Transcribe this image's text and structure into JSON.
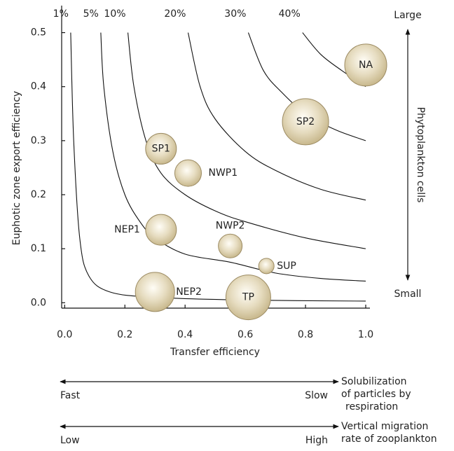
{
  "chart_data": {
    "type": "bubble",
    "x_label": "Transfer efficiency",
    "y_label": "Euphotic zone export efficiency",
    "xlim": [
      -0.01,
      1.0
    ],
    "ylim": [
      -0.01,
      0.55
    ],
    "xticks": [
      {
        "value": 0,
        "label": "0.0"
      },
      0.2,
      0.4,
      0.6,
      0.8,
      {
        "value": 1,
        "label": "1.0"
      }
    ],
    "yticks": [
      {
        "value": 0,
        "label": "0.0"
      },
      0.1,
      0.2,
      0.3,
      0.4,
      0.5
    ],
    "contours": [
      {
        "name": "1%",
        "x": [
          0.02,
          0.03,
          0.05,
          0.08,
          0.15,
          0.3,
          0.6,
          1.0
        ],
        "y": [
          0.5,
          0.3,
          0.12,
          0.05,
          0.02,
          0.01,
          0.005,
          0.003
        ]
      },
      {
        "name": "5%",
        "x": [
          0.12,
          0.13,
          0.16,
          0.2,
          0.25,
          0.3,
          0.4,
          0.55,
          0.7,
          0.85,
          1.0
        ],
        "y": [
          0.5,
          0.4,
          0.28,
          0.2,
          0.15,
          0.12,
          0.09,
          0.075,
          0.055,
          0.045,
          0.04
        ]
      },
      {
        "name": "10%",
        "x": [
          0.21,
          0.23,
          0.27,
          0.32,
          0.4,
          0.5,
          0.6,
          0.8,
          1.0
        ],
        "y": [
          0.5,
          0.4,
          0.3,
          0.24,
          0.2,
          0.17,
          0.15,
          0.12,
          0.1
        ]
      },
      {
        "name": "20%",
        "x": [
          0.41,
          0.45,
          0.5,
          0.6,
          0.7,
          0.85,
          1.0
        ],
        "y": [
          0.5,
          0.4,
          0.34,
          0.28,
          0.245,
          0.21,
          0.19
        ]
      },
      {
        "name": "30%",
        "x": [
          0.61,
          0.66,
          0.72,
          0.8,
          0.9,
          1.0
        ],
        "y": [
          0.5,
          0.43,
          0.39,
          0.35,
          0.32,
          0.3
        ]
      },
      {
        "name": "40%",
        "x": [
          0.79,
          0.85,
          0.92,
          1.0
        ],
        "y": [
          0.5,
          0.46,
          0.43,
          0.4
        ]
      }
    ],
    "points": {
      "names": [
        "NA",
        "SP2",
        "SP1",
        "NWP1",
        "NEP1",
        "NWP2",
        "SUP",
        "NEP2",
        "TP"
      ],
      "x": [
        1.0,
        0.8,
        0.32,
        0.41,
        0.32,
        0.55,
        0.67,
        0.3,
        0.61
      ],
      "y": [
        0.44,
        0.335,
        0.285,
        0.24,
        0.135,
        0.105,
        0.068,
        0.02,
        0.01
      ],
      "size": [
        30,
        33,
        22,
        19,
        22,
        17,
        11,
        28,
        32
      ]
    },
    "right_axis": {
      "top": "Large",
      "bottom": "Small",
      "label": "Phytoplankton cells"
    },
    "bottom_scales": [
      {
        "left": "Fast",
        "right": "Slow",
        "label": [
          "Solubilization",
          "of particles by",
          "respiration"
        ]
      },
      {
        "left": "Low",
        "right": "High",
        "label": [
          "Vertical migration",
          "rate of zooplankton"
        ]
      }
    ]
  }
}
